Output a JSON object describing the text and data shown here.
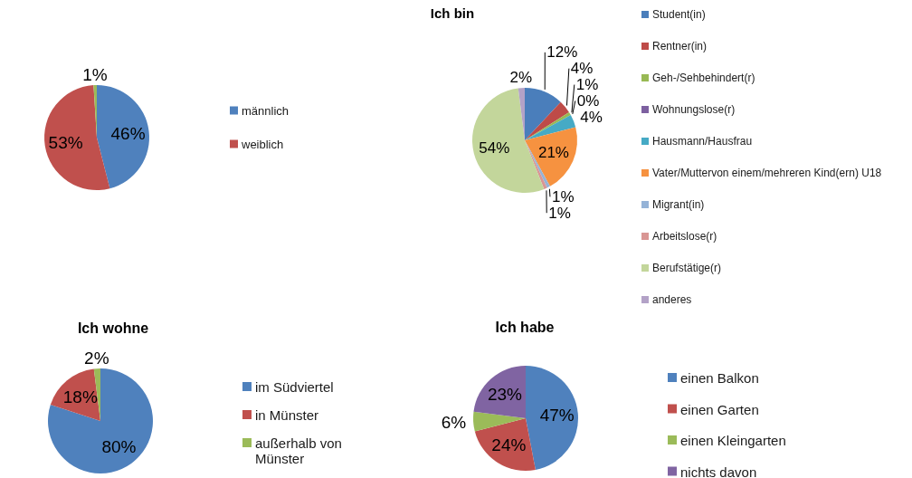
{
  "chart_data": [
    {
      "type": "pie",
      "categories": [
        "männlich",
        "weiblich",
        null
      ],
      "values": [
        46,
        53,
        1
      ],
      "colors": [
        "#4f81bd",
        "#c0504d",
        "#9bbb59"
      ],
      "value_labels": [
        "46%",
        "53%",
        "1%"
      ],
      "legend": "right"
    },
    {
      "type": "pie",
      "title": "Ich bin",
      "categories": [
        "Student(in)",
        "Rentner(in)",
        "Geh-/Sehbehindert(r)",
        "Wohnungslose(r)",
        "Hausmann/Hausfrau",
        "Vater/Muttervon einem/mehreren Kind(ern) U18",
        "Migrant(in)",
        "Arbeitslose(r)",
        "Berufstätige(r)",
        "anderes"
      ],
      "values": [
        12,
        4,
        1,
        0,
        4,
        21,
        1,
        1,
        54,
        2
      ],
      "colors": [
        "#4a7ebb",
        "#be4b48",
        "#98b954",
        "#7d60a0",
        "#46aac5",
        "#f69240",
        "#95b3d7",
        "#d99694",
        "#c3d69b",
        "#b3a2c7"
      ],
      "value_labels": [
        "12%",
        "4%",
        "1%",
        "0%",
        "4%",
        "21%",
        "1%",
        "1%",
        "54%",
        "2%"
      ],
      "legend": "right"
    },
    {
      "type": "pie",
      "title": "Ich wohne",
      "categories": [
        "im Südviertel",
        "in Münster",
        "außerhalb von Münster"
      ],
      "values": [
        80,
        18,
        2
      ],
      "colors": [
        "#4f81bd",
        "#c0504d",
        "#9bbb59"
      ],
      "value_labels": [
        "80%",
        "18%",
        "2%"
      ],
      "legend": "right"
    },
    {
      "type": "pie",
      "title": "Ich habe",
      "categories": [
        "einen Balkon",
        "einen Garten",
        "einen Kleingarten",
        "nichts davon"
      ],
      "values": [
        47,
        24,
        6,
        23
      ],
      "colors": [
        "#4f81bd",
        "#c0504d",
        "#9bbb59",
        "#8064a2"
      ],
      "value_labels": [
        "47%",
        "24%",
        "6%",
        "23%"
      ],
      "legend": "right"
    }
  ]
}
